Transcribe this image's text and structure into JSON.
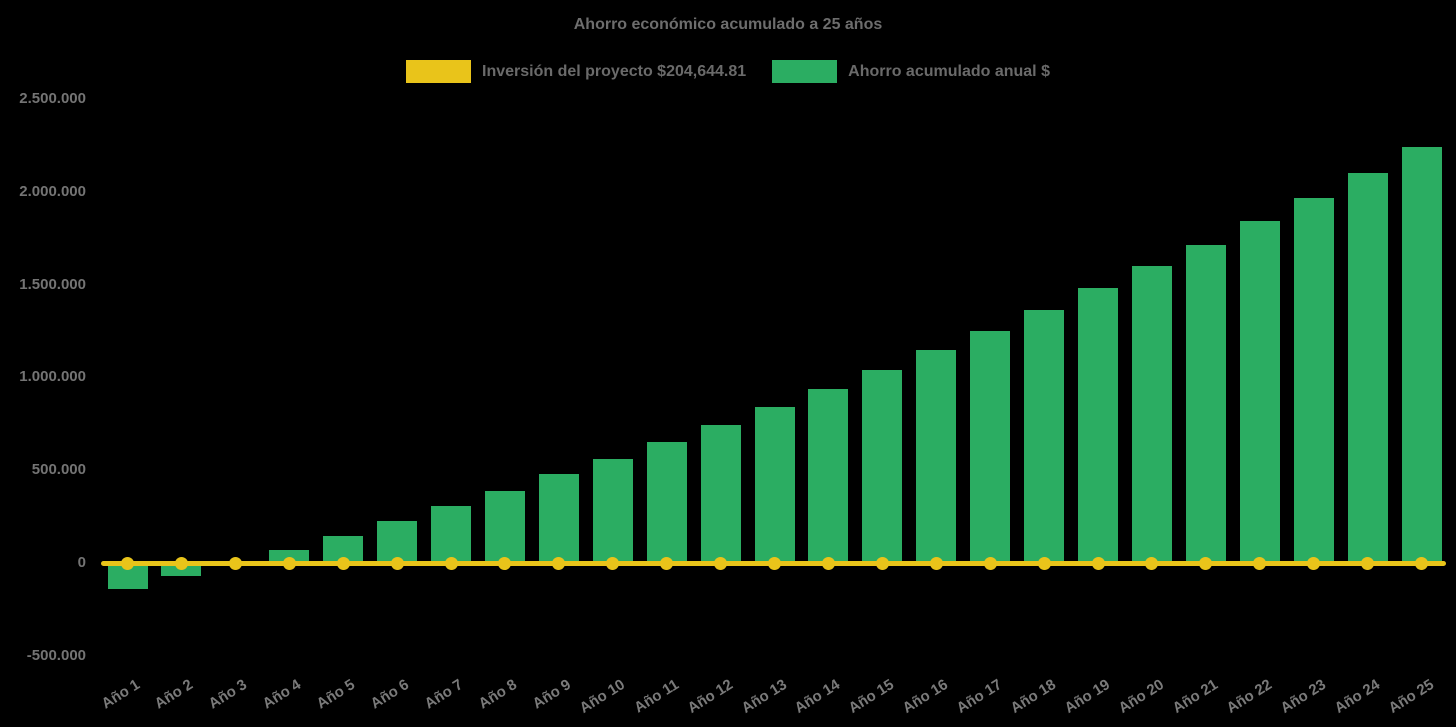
{
  "legend": {
    "investment_label": "Inversión del proyecto $204,644.81",
    "investment_color": "#e9c41a",
    "savings_label": "Ahorro acumulado anual $",
    "savings_color": "#2bad62"
  },
  "chart_data": {
    "type": "bar",
    "title": "Ahorro económico acumulado a 25 años",
    "background": "#000000",
    "grid": false,
    "legend_position": "top",
    "categories": [
      "Año 1",
      "Año 2",
      "Año 3",
      "Año 4",
      "Año 5",
      "Año 6",
      "Año 7",
      "Año 8",
      "Año 9",
      "Año 10",
      "Año 11",
      "Año 12",
      "Año 13",
      "Año 14",
      "Año 15",
      "Año 16",
      "Año 17",
      "Año 18",
      "Año 19",
      "Año 20",
      "Año 21",
      "Año 22",
      "Año 23",
      "Año 24",
      "Año 25"
    ],
    "series": [
      {
        "name": "Ahorro acumulado anual $",
        "type": "bar",
        "color": "#2bad62",
        "values": [
          -140000,
          -72000,
          0,
          70000,
          145000,
          225000,
          305000,
          390000,
          480000,
          560000,
          650000,
          745000,
          840000,
          940000,
          1040000,
          1145000,
          1250000,
          1365000,
          1480000,
          1600000,
          1715000,
          1840000,
          1965000,
          2100000,
          2240000
        ]
      },
      {
        "name": "Inversión del proyecto $204,644.81",
        "type": "line",
        "color": "#e9c41a",
        "marker": "circle",
        "investment_value": 204644.81,
        "line_value": 0
      }
    ],
    "y_axis": {
      "range": [
        -500000,
        2500000
      ],
      "ticks": [
        {
          "label": "2.500.000",
          "value": 2500000
        },
        {
          "label": "2.000.000",
          "value": 2000000
        },
        {
          "label": "1.500.000",
          "value": 1500000
        },
        {
          "label": "1.000.000",
          "value": 1000000
        },
        {
          "label": "500.000",
          "value": 500000
        },
        {
          "label": "0",
          "value": 0
        },
        {
          "label": "-500.000",
          "value": -500000
        }
      ]
    }
  }
}
